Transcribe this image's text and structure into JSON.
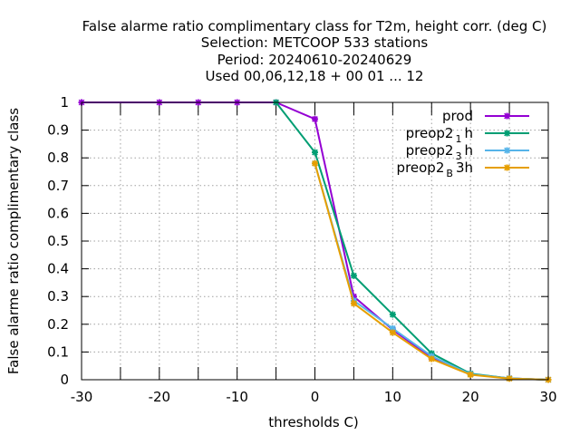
{
  "chart_data": {
    "type": "line",
    "title_lines": [
      "False alarme ratio complimentary class  for T2m, height corr. (deg C)",
      "Selection: METCOOP    533 stations",
      "Period: 20240610-20240629",
      "Used  00,06,12,18 + 00 01 ... 12"
    ],
    "xlabel": "thresholds C)",
    "ylabel": "False alarme ratio complimentary class",
    "xlim": [
      -30,
      30
    ],
    "ylim": [
      0,
      1
    ],
    "xticks": [
      -30,
      -20,
      -10,
      0,
      10,
      20,
      30
    ],
    "xticks_minor": [
      -25,
      -15,
      -5,
      5,
      15,
      25
    ],
    "yticks": [
      0,
      0.1,
      0.2,
      0.3,
      0.4,
      0.5,
      0.6,
      0.7,
      0.8,
      0.9,
      1
    ],
    "ytick_labels": [
      "0",
      "0.1",
      "0.2",
      "0.3",
      "0.4",
      "0.5",
      "0.6",
      "0.7",
      "0.8",
      "0.9",
      "1"
    ],
    "grid": true,
    "legend_position": "top-right",
    "series": [
      {
        "name": "prod",
        "sub": "",
        "suffix": "",
        "color": "#9400d3",
        "x": [
          -30,
          -20,
          -15,
          -10,
          -5,
          0,
          5,
          10,
          15,
          20,
          25,
          30
        ],
        "y": [
          1,
          1,
          1,
          1,
          1,
          0.94,
          0.3,
          0.18,
          0.08,
          0.02,
          0.005,
          0
        ]
      },
      {
        "name": "preop2",
        "sub": "1",
        "suffix": "h",
        "color": "#009e73",
        "x": [
          -5,
          0,
          5,
          10,
          15,
          20,
          25,
          30
        ],
        "y": [
          1,
          0.82,
          0.375,
          0.235,
          0.095,
          0.022,
          0.005,
          0
        ]
      },
      {
        "name": "preop2",
        "sub": "3",
        "suffix": "h",
        "color": "#56b4e9",
        "x": [
          0,
          5,
          10,
          15,
          20,
          25,
          30
        ],
        "y": [
          0.78,
          0.285,
          0.185,
          0.085,
          0.02,
          0.005,
          0
        ]
      },
      {
        "name": "preop2",
        "sub": "B",
        "suffix": "3h",
        "color": "#e69f00",
        "x": [
          0,
          5,
          10,
          15,
          20,
          25,
          30
        ],
        "y": [
          0.78,
          0.275,
          0.17,
          0.075,
          0.018,
          0.004,
          0
        ]
      }
    ]
  }
}
